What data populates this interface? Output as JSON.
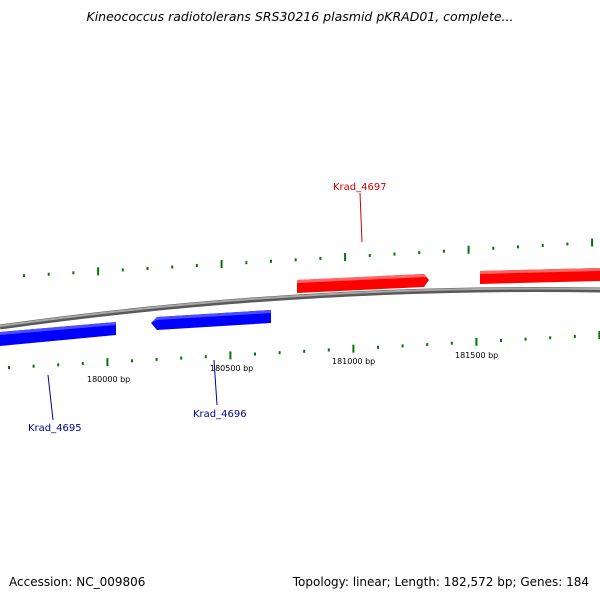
{
  "title": "Kineococcus radiotolerans SRS30216 plasmid pKRAD01, complete...",
  "footer": {
    "accession": "Accession: NC_009806",
    "summary": "Topology: linear; Length: 182,572 bp; Genes: 184"
  },
  "colors": {
    "forward_gene": "#ff0000",
    "reverse_gene": "#0000ff",
    "forward_label": "#cc0000",
    "reverse_label": "#000099",
    "tick": "#007700",
    "backbone": "#808080"
  },
  "ticks": [
    {
      "position_bp": 180000,
      "label": "180000 bp"
    },
    {
      "position_bp": 180500,
      "label": "180500 bp"
    },
    {
      "position_bp": 181000,
      "label": "181000 bp"
    },
    {
      "position_bp": 181500,
      "label": "181500 bp"
    }
  ],
  "genes": [
    {
      "name": "Krad_4695",
      "strand": "reverse"
    },
    {
      "name": "Krad_4696",
      "strand": "reverse"
    },
    {
      "name": "Krad_4697",
      "strand": "forward"
    },
    {
      "name": "",
      "strand": "forward"
    }
  ]
}
